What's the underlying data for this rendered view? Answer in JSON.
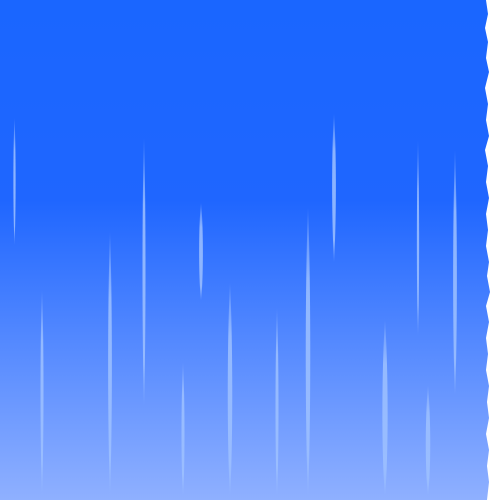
{
  "background": {
    "description_colors": {
      "top": "#1a66ff",
      "middle": "#1f66ff",
      "bottom": "#8fb0ff"
    }
  },
  "streaks": {
    "color": "#9ec1ff"
  }
}
